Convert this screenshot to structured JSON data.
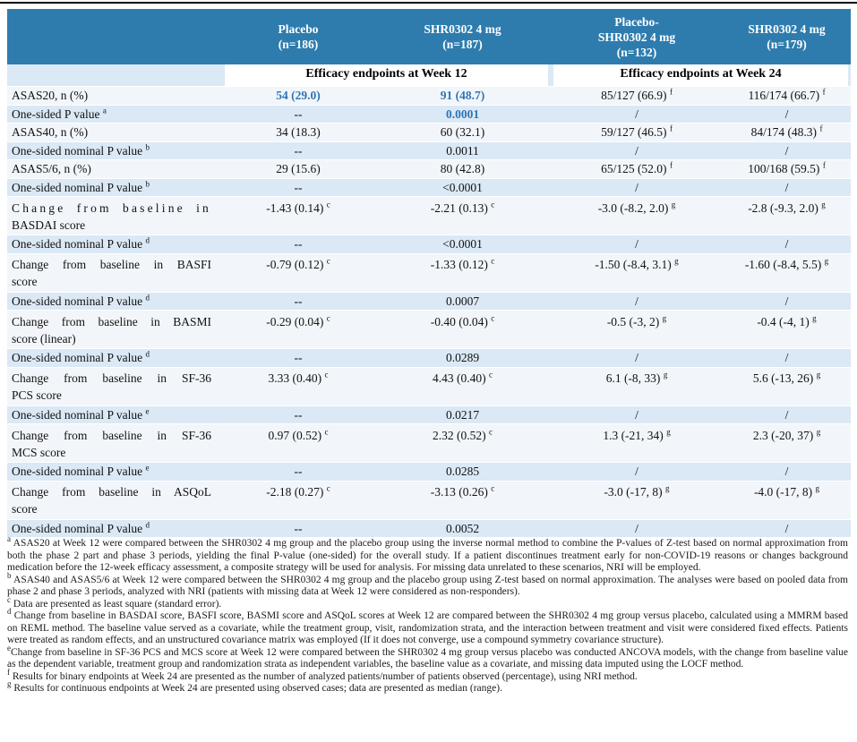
{
  "table": {
    "colors": {
      "header_bg": "#2E7CAE",
      "band_light_blue": "#DBE8F5",
      "band_pale": "#F2F6FA",
      "highlight_text": "#2E74B5"
    },
    "column_headers": [
      {
        "lines": [
          "Placebo",
          "(n=186)"
        ]
      },
      {
        "lines": [
          "SHR0302 4 mg",
          "(n=187)"
        ]
      },
      {
        "lines": [
          "Placebo-",
          "SHR0302 4 mg",
          "(n=132)"
        ]
      },
      {
        "lines": [
          "SHR0302 4 mg",
          "(n=179)"
        ]
      }
    ],
    "section_headers": [
      "Efficacy endpoints at Week 12",
      "Efficacy endpoints at Week 24"
    ],
    "rows": [
      {
        "kind": "endpoint",
        "label_lines": [
          "ASAS20, n (%)"
        ],
        "cells": [
          {
            "v": "54 (29.0)",
            "hl": true
          },
          {
            "v": "91 (48.7)",
            "hl": true
          },
          {
            "v": "85/127 (66.9)",
            "sup": "f"
          },
          {
            "v": "116/174 (66.7)",
            "sup": "f"
          }
        ]
      },
      {
        "kind": "pvalue",
        "label_lines": [
          "One-sided P value"
        ],
        "label_sup": "a",
        "cells": [
          {
            "v": "--"
          },
          {
            "v": "0.0001",
            "hl": true
          },
          {
            "v": "/"
          },
          {
            "v": "/"
          }
        ]
      },
      {
        "kind": "endpoint",
        "label_lines": [
          "ASAS40, n (%)"
        ],
        "cells": [
          {
            "v": "34 (18.3)"
          },
          {
            "v": "60 (32.1)"
          },
          {
            "v": "59/127 (46.5)",
            "sup": "f"
          },
          {
            "v": "84/174 (48.3)",
            "sup": "f"
          }
        ]
      },
      {
        "kind": "pvalue",
        "label_lines": [
          "One-sided nominal P value"
        ],
        "label_sup": "b",
        "cells": [
          {
            "v": "--"
          },
          {
            "v": "0.0011"
          },
          {
            "v": "/"
          },
          {
            "v": "/"
          }
        ]
      },
      {
        "kind": "endpoint",
        "label_lines": [
          "ASAS5/6, n (%)"
        ],
        "cells": [
          {
            "v": "29 (15.6)"
          },
          {
            "v": "80 (42.8)"
          },
          {
            "v": "65/125 (52.0)",
            "sup": "f"
          },
          {
            "v": "100/168 (59.5)",
            "sup": "f"
          }
        ]
      },
      {
        "kind": "pvalue",
        "label_lines": [
          "One-sided nominal P value"
        ],
        "label_sup": "b",
        "cells": [
          {
            "v": "--"
          },
          {
            "v": "<0.0001"
          },
          {
            "v": "/"
          },
          {
            "v": "/"
          }
        ]
      },
      {
        "kind": "endpoint",
        "tall": true,
        "spread_first": true,
        "label_lines": [
          "Change from baseline in",
          "BASDAI score"
        ],
        "cells": [
          {
            "v": "-1.43 (0.14)",
            "sup": "c"
          },
          {
            "v": "-2.21 (0.13)",
            "sup": "c"
          },
          {
            "v": "-3.0 (-8.2, 2.0)",
            "sup": "g"
          },
          {
            "v": "-2.8 (-9.3, 2.0)",
            "sup": "g"
          }
        ]
      },
      {
        "kind": "pvalue",
        "label_lines": [
          "One-sided nominal P value"
        ],
        "label_sup": "d",
        "cells": [
          {
            "v": "--"
          },
          {
            "v": "<0.0001"
          },
          {
            "v": "/"
          },
          {
            "v": "/"
          }
        ]
      },
      {
        "kind": "endpoint",
        "tall": true,
        "label_lines": [
          "Change from baseline in BASFI",
          "score"
        ],
        "cells": [
          {
            "v": "-0.79 (0.12)",
            "sup": "c"
          },
          {
            "v": "-1.33 (0.12)",
            "sup": "c"
          },
          {
            "v": "-1.50 (-8.4, 3.1)",
            "sup": "g"
          },
          {
            "v": "-1.60 (-8.4, 5.5)",
            "sup": "g"
          }
        ]
      },
      {
        "kind": "pvalue",
        "label_lines": [
          "One-sided nominal P value"
        ],
        "label_sup": "d",
        "cells": [
          {
            "v": "--"
          },
          {
            "v": "0.0007"
          },
          {
            "v": "/"
          },
          {
            "v": "/"
          }
        ]
      },
      {
        "kind": "endpoint",
        "tall": true,
        "label_lines": [
          "Change from baseline in BASMI",
          "score (linear)"
        ],
        "cells": [
          {
            "v": "-0.29 (0.04)",
            "sup": "c"
          },
          {
            "v": "-0.40 (0.04)",
            "sup": "c"
          },
          {
            "v": "-0.5 (-3, 2)",
            "sup": "g"
          },
          {
            "v": "-0.4 (-4, 1)",
            "sup": "g"
          }
        ]
      },
      {
        "kind": "pvalue",
        "label_lines": [
          "One-sided nominal P value"
        ],
        "label_sup": "d",
        "cells": [
          {
            "v": "--"
          },
          {
            "v": "0.0289"
          },
          {
            "v": "/"
          },
          {
            "v": "/"
          }
        ]
      },
      {
        "kind": "endpoint",
        "tall": true,
        "label_lines": [
          "Change from baseline in SF-36",
          "PCS score"
        ],
        "cells": [
          {
            "v": "3.33 (0.40)",
            "sup": "c"
          },
          {
            "v": "4.43 (0.40)",
            "sup": "c"
          },
          {
            "v": "6.1 (-8, 33)",
            "sup": "g"
          },
          {
            "v": "5.6 (-13, 26)",
            "sup": "g"
          }
        ]
      },
      {
        "kind": "pvalue",
        "label_lines": [
          "One-sided nominal P value"
        ],
        "label_sup": "e",
        "cells": [
          {
            "v": "--"
          },
          {
            "v": "0.0217"
          },
          {
            "v": "/"
          },
          {
            "v": "/"
          }
        ]
      },
      {
        "kind": "endpoint",
        "tall": true,
        "label_lines": [
          "Change from baseline in SF-36",
          "MCS score"
        ],
        "cells": [
          {
            "v": "0.97 (0.52)",
            "sup": "c"
          },
          {
            "v": "2.32 (0.52)",
            "sup": "c"
          },
          {
            "v": "1.3 (-21, 34)",
            "sup": "g"
          },
          {
            "v": "2.3 (-20, 37)",
            "sup": "g"
          }
        ]
      },
      {
        "kind": "pvalue",
        "label_lines": [
          "One-sided nominal P value"
        ],
        "label_sup": "e",
        "cells": [
          {
            "v": "--"
          },
          {
            "v": "0.0285"
          },
          {
            "v": "/"
          },
          {
            "v": "/"
          }
        ]
      },
      {
        "kind": "endpoint",
        "tall": true,
        "label_lines": [
          "Change from baseline in ASQoL",
          "score"
        ],
        "cells": [
          {
            "v": "-2.18 (0.27)",
            "sup": "c"
          },
          {
            "v": "-3.13 (0.26)",
            "sup": "c"
          },
          {
            "v": "-3.0 (-17, 8)",
            "sup": "g"
          },
          {
            "v": "-4.0 (-17, 8)",
            "sup": "g"
          }
        ]
      },
      {
        "kind": "pvalue",
        "label_lines": [
          "One-sided nominal P value"
        ],
        "label_sup": "d",
        "cells": [
          {
            "v": "--"
          },
          {
            "v": "0.0052"
          },
          {
            "v": "/"
          },
          {
            "v": "/"
          }
        ]
      }
    ]
  },
  "footnotes": [
    {
      "marker": "a",
      "text": " ASAS20 at Week 12 were compared between the SHR0302 4 mg group and the placebo group using the inverse normal method to combine the P-values of Z-test based on normal approximation from both the phase 2 part and phase 3 periods, yielding the final P-value (one-sided) for the overall study. If a patient discontinues treatment early for non-COVID-19 reasons or changes background medication before the 12-week efficacy assessment, a composite strategy will be used for analysis. For missing data unrelated to these scenarios, NRI will be employed."
    },
    {
      "marker": "b",
      "text": " ASAS40 and ASAS5/6 at Week 12 were compared between the SHR0302 4 mg group and the placebo group using Z-test based on normal approximation. The analyses were based on pooled data from phase 2 and phase 3 periods, analyzed with NRI (patients with missing data at Week 12 were considered as non-responders)."
    },
    {
      "marker": "c",
      "text": " Data are presented as least square (standard error)."
    },
    {
      "marker": "d",
      "text": " Change from baseline in BASDAI score, BASFI score, BASMI score and ASQoL scores at Week 12 are compared between the SHR0302 4 mg group versus placebo, calculated using a MMRM based on REML method. The baseline value served as a covariate, while the treatment group, visit, randomization strata, and the interaction between treatment and visit were considered fixed effects. Patients were treated as random effects, and an unstructured covariance matrix was employed (If it does not converge, use a compound symmetry covariance structure)."
    },
    {
      "marker": "e",
      "text": "Change from baseline in SF-36 PCS and MCS score at Week 12 were compared between the SHR0302 4 mg group versus placebo was conducted ANCOVA models, with the change from baseline value as the dependent variable, treatment group and randomization strata as independent variables, the baseline value as a covariate, and missing data imputed using the LOCF method."
    },
    {
      "marker": "f",
      "text": " Results for binary endpoints at Week 24 are presented as the number of analyzed patients/number of patients observed (percentage), using NRI method."
    },
    {
      "marker": "g",
      "text": " Results for continuous endpoints at Week 24 are presented using observed cases; data are presented as median (range)."
    }
  ]
}
